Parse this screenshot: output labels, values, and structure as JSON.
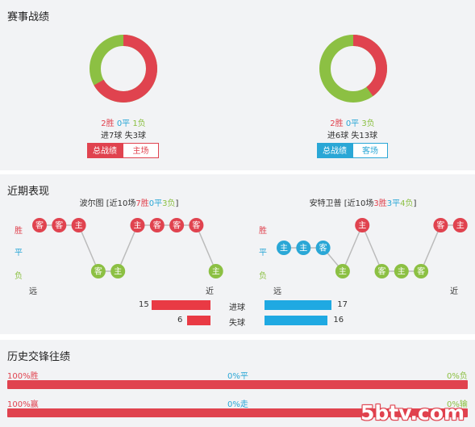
{
  "section1": {
    "title": "赛事战绩",
    "left": {
      "wins": "2胜",
      "draws": "0平",
      "losses": "1负",
      "goals": "进7球 失3球",
      "tab_overall": "总战绩",
      "tab_venue": "主场",
      "donut": {
        "win_fraction": 0.667,
        "color_win": "#e0434f",
        "color_loss": "#8cc043"
      }
    },
    "right": {
      "wins": "2胜",
      "draws": "0平",
      "losses": "3负",
      "goals": "进6球 失13球",
      "tab_overall": "总战绩",
      "tab_venue": "客场",
      "donut": {
        "win_fraction": 0.4,
        "color_win": "#e0434f",
        "color_loss": "#8cc043"
      }
    }
  },
  "section2": {
    "title": "近期表现",
    "left": {
      "team": "波尔图",
      "summary_prefix": "[近10场",
      "w": "7胜",
      "d": "0平",
      "l": "3负",
      "summary_suffix": "]",
      "results": [
        {
          "r": "W",
          "v": "客"
        },
        {
          "r": "W",
          "v": "客"
        },
        {
          "r": "W",
          "v": "主"
        },
        {
          "r": "L",
          "v": "客"
        },
        {
          "r": "L",
          "v": "主"
        },
        {
          "r": "W",
          "v": "主"
        },
        {
          "r": "W",
          "v": "客"
        },
        {
          "r": "W",
          "v": "客"
        },
        {
          "r": "W",
          "v": "客"
        },
        {
          "r": "L",
          "v": "主"
        }
      ]
    },
    "right": {
      "team": "安特卫普",
      "summary_prefix": "[近10场",
      "w": "3胜",
      "d": "3平",
      "l": "4负",
      "summary_suffix": "]",
      "results": [
        {
          "r": "D",
          "v": "主"
        },
        {
          "r": "D",
          "v": "主"
        },
        {
          "r": "D",
          "v": "客"
        },
        {
          "r": "L",
          "v": "主"
        },
        {
          "r": "W",
          "v": "主"
        },
        {
          "r": "L",
          "v": "客"
        },
        {
          "r": "L",
          "v": "主"
        },
        {
          "r": "L",
          "v": "客"
        },
        {
          "r": "W",
          "v": "客"
        },
        {
          "r": "W",
          "v": "主"
        }
      ]
    },
    "row_labels": {
      "win": "胜",
      "draw": "平",
      "loss": "负"
    },
    "far": "远",
    "near": "近",
    "goals": {
      "label": "进球",
      "left": 15,
      "right": 17
    },
    "conceded": {
      "label": "失球",
      "left": 6,
      "right": 16
    }
  },
  "section3": {
    "title": "历史交锋往绩",
    "row1": {
      "left": "100%胜",
      "mid": "0%平",
      "right": "0%负",
      "fill": 1.0
    },
    "row2": {
      "left": "100%赢",
      "mid": "0%走",
      "right": "0%输",
      "fill": 1.0
    }
  },
  "watermark": "5btv.com",
  "colors": {
    "win": "#e0434f",
    "draw": "#2aa7d6",
    "loss": "#8cc043",
    "bar_left": "#e93a44",
    "bar_right": "#1fa9e2"
  }
}
